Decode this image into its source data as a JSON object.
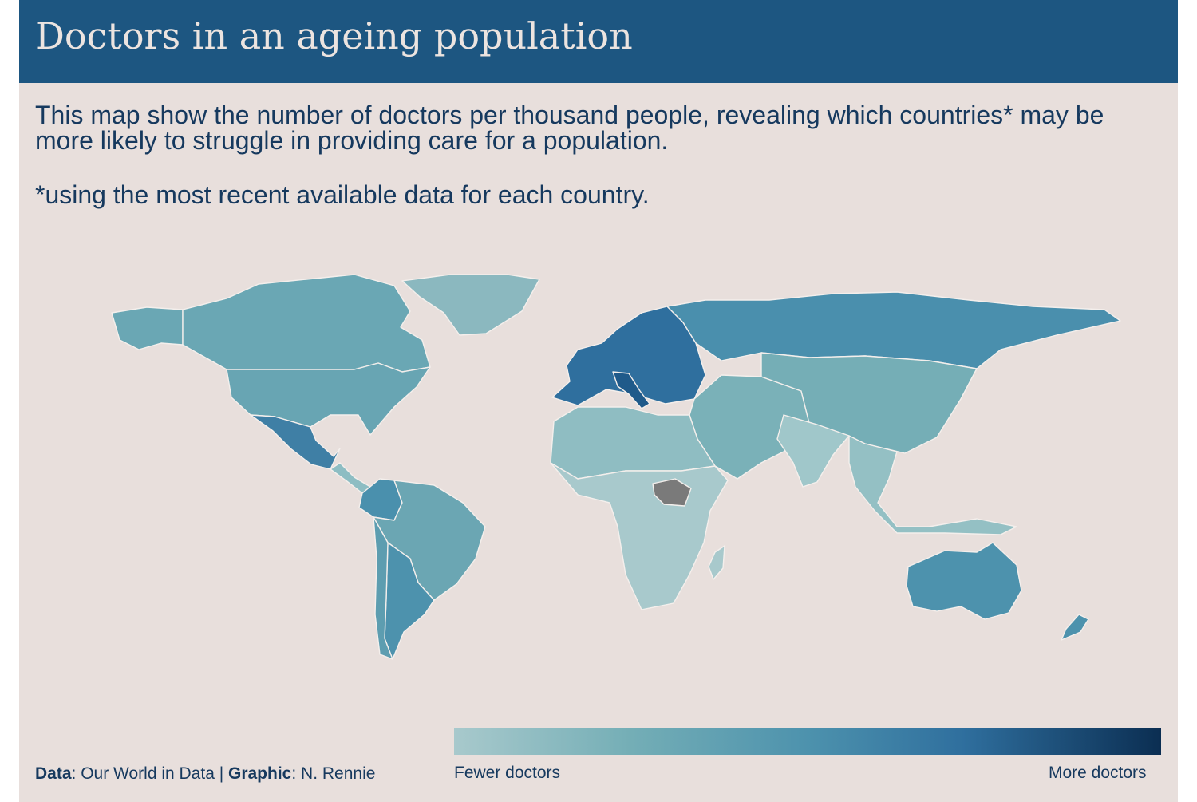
{
  "title": "Doctors in an ageing population",
  "subtitle": "This map show the number of doctors per thousand people, revealing which countries* may be more likely to struggle in providing care for a population.",
  "note": "*using the most recent available data for each country.",
  "caption": {
    "data_label": "Data",
    "data_value": ": Our World in Data | ",
    "graphic_label": "Graphic",
    "graphic_value": ": N. Rennie"
  },
  "legend": {
    "low_label": "Fewer doctors",
    "high_label": "More doctors",
    "colors": [
      "#a8c9cc",
      "#74aeb6",
      "#4d92ad",
      "#2f6f9e",
      "#0b2e52"
    ]
  },
  "colors": {
    "banner": "#1d5681",
    "background": "#e8dfdc",
    "text": "#16395e",
    "no_data": "#7a7a7a"
  },
  "regions": [
    {
      "name": "Canada",
      "color": "#6aa7b4"
    },
    {
      "name": "Alaska",
      "color": "#6aa7b4"
    },
    {
      "name": "Greenland",
      "color": "#8bb8bf"
    },
    {
      "name": "United States",
      "color": "#68a5b3"
    },
    {
      "name": "Mexico",
      "color": "#3f7fa5"
    },
    {
      "name": "Central America",
      "color": "#8dbdc3"
    },
    {
      "name": "Colombia",
      "color": "#4a90ad"
    },
    {
      "name": "Brazil",
      "color": "#6ba6b3"
    },
    {
      "name": "Argentina",
      "color": "#4d92ad"
    },
    {
      "name": "Chile",
      "color": "#5d9db0"
    },
    {
      "name": "Europe West",
      "color": "#2f6f9e"
    },
    {
      "name": "Italy",
      "color": "#1f5a8a"
    },
    {
      "name": "Russia",
      "color": "#4a8fad"
    },
    {
      "name": "China",
      "color": "#75aeb6"
    },
    {
      "name": "India",
      "color": "#a0c7ca"
    },
    {
      "name": "Middle East",
      "color": "#7ab1b8"
    },
    {
      "name": "North Africa",
      "color": "#8fbdc2"
    },
    {
      "name": "Sub-Saharan Africa",
      "color": "#a8c9cc"
    },
    {
      "name": "South Sudan",
      "color": "#7a7a7a"
    },
    {
      "name": "Australia",
      "color": "#4d92ad"
    },
    {
      "name": "Southeast Asia",
      "color": "#94c0c4"
    }
  ]
}
